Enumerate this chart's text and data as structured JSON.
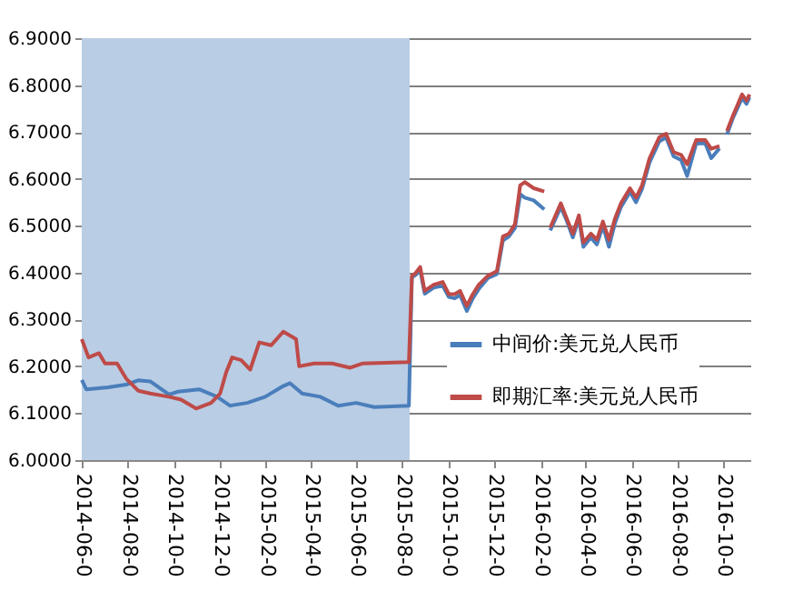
{
  "chart_data": {
    "type": "line",
    "xlim": [
      "2014-06-01",
      "2016-11-06"
    ],
    "ylim": [
      6.0,
      6.9
    ],
    "yticks": [
      {
        "value": 6.0,
        "label": "6.0000"
      },
      {
        "value": 6.1,
        "label": "6.1000"
      },
      {
        "value": 6.2,
        "label": "6.2000"
      },
      {
        "value": 6.3,
        "label": "6.3000"
      },
      {
        "value": 6.4,
        "label": "6.4000"
      },
      {
        "value": 6.5,
        "label": "6.5000"
      },
      {
        "value": 6.6,
        "label": "6.6000"
      },
      {
        "value": 6.7,
        "label": "6.7000"
      },
      {
        "value": 6.8,
        "label": "6.8000"
      },
      {
        "value": 6.9,
        "label": "6.9000"
      }
    ],
    "xticks": [
      {
        "value": "2014-06-01",
        "label": "2014-06-0"
      },
      {
        "value": "2014-08-01",
        "label": "2014-08-0"
      },
      {
        "value": "2014-10-01",
        "label": "2014-10-0"
      },
      {
        "value": "2014-12-01",
        "label": "2014-12-0"
      },
      {
        "value": "2015-02-01",
        "label": "2015-02-0"
      },
      {
        "value": "2015-04-01",
        "label": "2015-04-0"
      },
      {
        "value": "2015-06-01",
        "label": "2015-06-0"
      },
      {
        "value": "2015-08-01",
        "label": "2015-08-0"
      },
      {
        "value": "2015-10-01",
        "label": "2015-10-0"
      },
      {
        "value": "2015-12-01",
        "label": "2015-12-0"
      },
      {
        "value": "2016-02-01",
        "label": "2016-02-0"
      },
      {
        "value": "2016-04-01",
        "label": "2016-04-0"
      },
      {
        "value": "2016-06-01",
        "label": "2016-06-0"
      },
      {
        "value": "2016-08-01",
        "label": "2016-08-0"
      },
      {
        "value": "2016-10-01",
        "label": "2016-10-0"
      }
    ],
    "grid": "y",
    "legend": "bottom right",
    "bands": [
      {
        "axis": "x",
        "from": "2014-06-01",
        "to": "2015-08-11",
        "color": "#b9cde5"
      }
    ],
    "series": [
      {
        "name": "中间价:美元兑人民币",
        "color": "#4a7ebb",
        "x": [
          "2014-06-01",
          "2014-06-07",
          "2014-07-06",
          "2014-07-30",
          "2014-08-15",
          "2014-08-31",
          "2014-09-25",
          "2014-10-07",
          "2014-11-04",
          "2014-11-28",
          "2014-12-15",
          "2015-01-07",
          "2015-01-31",
          "2015-02-24",
          "2015-03-05",
          "2015-03-21",
          "2015-04-14",
          "2015-05-08",
          "2015-06-01",
          "2015-06-25",
          "2015-08-10",
          "2015-08-14",
          "2015-08-19",
          "2015-08-25",
          "2015-08-31",
          "2015-09-12",
          "2015-09-24",
          "2015-10-02",
          "2015-10-10",
          "2015-10-17",
          "2015-10-26",
          "2015-11-03",
          "2015-11-11",
          "2015-11-23",
          "2015-12-05",
          "2015-12-13",
          "2015-12-21",
          "2015-12-29",
          "2016-01-05",
          "2016-01-11",
          "2016-01-23",
          "2016-02-06",
          "2016-02-10",
          "2016-02-14",
          "2016-02-28",
          "2016-03-07",
          "2016-03-15",
          "2016-03-23",
          "2016-03-29",
          "2016-04-08",
          "2016-04-16",
          "2016-04-24",
          "2016-05-02",
          "2016-05-10",
          "2016-05-18",
          "2016-05-30",
          "2016-06-07",
          "2016-06-15",
          "2016-06-25",
          "2016-07-08",
          "2016-07-17",
          "2016-07-27",
          "2016-08-06",
          "2016-08-14",
          "2016-08-26",
          "2016-09-07",
          "2016-09-15",
          "2016-09-26",
          "2016-10-01",
          "2016-10-06",
          "2016-10-14",
          "2016-10-26",
          "2016-11-01",
          "2016-11-05"
        ],
        "values": [
          6.171,
          6.151,
          6.155,
          6.161,
          6.17,
          6.168,
          6.14,
          6.146,
          6.151,
          6.135,
          6.116,
          6.122,
          6.135,
          6.158,
          6.164,
          6.142,
          6.135,
          6.116,
          6.122,
          6.113,
          6.116,
          6.39,
          6.395,
          6.405,
          6.355,
          6.368,
          6.372,
          6.348,
          6.345,
          6.352,
          6.318,
          6.345,
          6.365,
          6.388,
          6.397,
          6.468,
          6.477,
          6.495,
          6.567,
          6.56,
          6.554,
          6.535,
          null,
          6.49,
          6.54,
          6.51,
          6.475,
          6.515,
          6.455,
          6.475,
          6.46,
          6.5,
          6.455,
          6.505,
          6.54,
          6.572,
          6.55,
          6.578,
          6.635,
          6.68,
          6.688,
          6.648,
          6.64,
          6.606,
          6.675,
          6.676,
          6.644,
          6.665,
          null,
          6.695,
          6.73,
          6.772,
          6.76,
          6.774
        ]
      },
      {
        "name": "即期汇率:美元兑人民币",
        "color": "#be4b48",
        "x": [
          "2014-06-01",
          "2014-06-10",
          "2014-06-24",
          "2014-07-02",
          "2014-07-18",
          "2014-07-30",
          "2014-08-15",
          "2014-08-31",
          "2014-09-25",
          "2014-10-11",
          "2014-10-31",
          "2014-11-20",
          "2014-12-02",
          "2014-12-10",
          "2014-12-18",
          "2014-12-30",
          "2015-01-11",
          "2015-01-23",
          "2015-02-08",
          "2015-02-24",
          "2015-03-13",
          "2015-03-17",
          "2015-04-06",
          "2015-04-30",
          "2015-05-24",
          "2015-06-09",
          "2015-08-10",
          "2015-08-14",
          "2015-08-19",
          "2015-08-25",
          "2015-08-31",
          "2015-09-12",
          "2015-09-24",
          "2015-10-02",
          "2015-10-10",
          "2015-10-17",
          "2015-10-26",
          "2015-11-03",
          "2015-11-11",
          "2015-11-23",
          "2015-12-05",
          "2015-12-13",
          "2015-12-21",
          "2015-12-29",
          "2016-01-05",
          "2016-01-11",
          "2016-01-23",
          "2016-02-06",
          "2016-02-10",
          "2016-02-14",
          "2016-02-28",
          "2016-03-07",
          "2016-03-15",
          "2016-03-23",
          "2016-03-29",
          "2016-04-08",
          "2016-04-16",
          "2016-04-24",
          "2016-05-02",
          "2016-05-10",
          "2016-05-18",
          "2016-05-30",
          "2016-06-07",
          "2016-06-15",
          "2016-06-25",
          "2016-07-08",
          "2016-07-17",
          "2016-07-27",
          "2016-08-06",
          "2016-08-14",
          "2016-08-26",
          "2016-09-07",
          "2016-09-15",
          "2016-09-26",
          "2016-10-01",
          "2016-10-06",
          "2016-10-14",
          "2016-10-26",
          "2016-11-01",
          "2016-11-05"
        ],
        "values": [
          6.258,
          6.219,
          6.228,
          6.206,
          6.206,
          6.174,
          6.148,
          6.142,
          6.135,
          6.129,
          6.11,
          6.122,
          6.142,
          6.187,
          6.219,
          6.213,
          6.193,
          6.251,
          6.245,
          6.274,
          6.258,
          6.2,
          6.206,
          6.206,
          6.197,
          6.206,
          6.209,
          6.393,
          6.399,
          6.412,
          6.361,
          6.374,
          6.38,
          6.354,
          6.354,
          6.361,
          6.329,
          6.354,
          6.374,
          6.393,
          6.403,
          6.477,
          6.483,
          6.503,
          6.586,
          6.593,
          6.58,
          6.573,
          null,
          6.496,
          6.548,
          6.515,
          6.483,
          6.522,
          6.464,
          6.483,
          6.47,
          6.509,
          6.47,
          6.515,
          6.548,
          6.58,
          6.56,
          6.586,
          6.644,
          6.689,
          6.696,
          6.657,
          6.651,
          6.631,
          6.683,
          6.683,
          6.664,
          6.67,
          null,
          6.702,
          6.735,
          6.78,
          6.767,
          6.78
        ]
      }
    ]
  }
}
